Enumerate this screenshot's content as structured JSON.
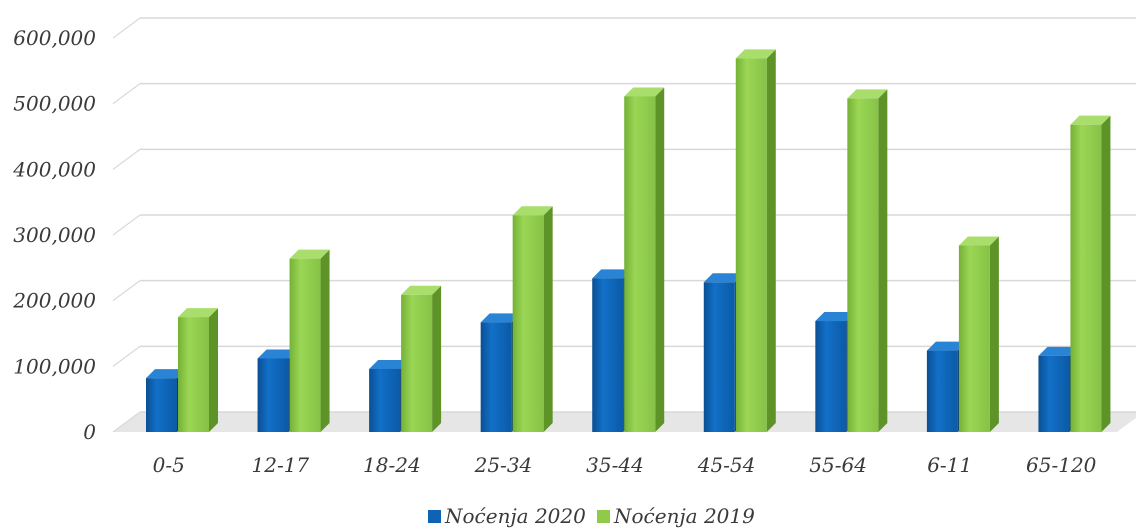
{
  "chart_data": {
    "type": "bar",
    "categories": [
      "0-5",
      "12-17",
      "18-24",
      "25-34",
      "35-44",
      "45-54",
      "55-64",
      "6-11",
      "65-120"
    ],
    "series": [
      {
        "name": "Noćenja 2020",
        "color": "#0f63b5",
        "values": [
          82000,
          112000,
          96000,
          167000,
          234000,
          228000,
          169000,
          124000,
          116000
        ]
      },
      {
        "name": "Noćenja 2019",
        "color": "#8fcb48",
        "values": [
          175000,
          264000,
          209000,
          330000,
          511000,
          569000,
          508000,
          284000,
          468000
        ]
      }
    ],
    "y_ticks": [
      "0",
      "100,000",
      "200,000",
      "300,000",
      "400,000",
      "500,000",
      "600,000"
    ],
    "ylim": [
      0,
      600000
    ],
    "grid": true,
    "legend_position": "bottom"
  }
}
